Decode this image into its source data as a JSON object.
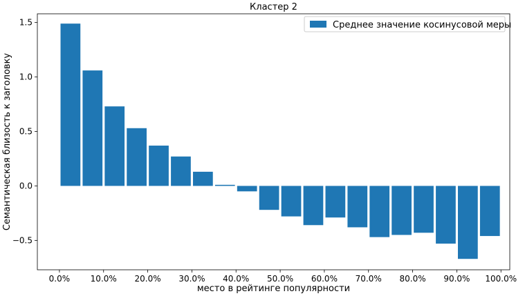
{
  "chart_data": {
    "type": "bar",
    "title": "Кластер 2",
    "xlabel": "место в рейтинге популярности",
    "ylabel": "Семантическая близость к заголовку",
    "categories": [
      "0.0%",
      "5.0%",
      "10.0%",
      "15.0%",
      "20.0%",
      "25.0%",
      "30.0%",
      "35.0%",
      "40.0%",
      "45.0%",
      "50.0%",
      "55.0%",
      "60.0%",
      "65.0%",
      "70.0%",
      "75.0%",
      "80.0%",
      "85.0%",
      "90.0%",
      "95.0%"
    ],
    "xticks": [
      "0.0%",
      "10.0%",
      "20.0%",
      "30.0%",
      "40.0%",
      "50.0%",
      "60.0%",
      "70.0%",
      "80.0%",
      "90.0%",
      "100.0%"
    ],
    "yticks": [
      "−0.5",
      "0.0",
      "0.5",
      "1.0",
      "1.5"
    ],
    "series": [
      {
        "name": "Среднее значение косинусовой меры",
        "color": "#1f77b4",
        "values": [
          1.49,
          1.06,
          0.73,
          0.53,
          0.37,
          0.27,
          0.13,
          0.01,
          -0.05,
          -0.22,
          -0.28,
          -0.36,
          -0.29,
          -0.38,
          -0.47,
          -0.45,
          -0.43,
          -0.53,
          -0.67,
          -0.46
        ]
      }
    ],
    "ylim": [
      -0.77,
      1.58
    ],
    "xlim": [
      -5,
      102
    ],
    "legend_position": "top-right",
    "grid": false
  }
}
